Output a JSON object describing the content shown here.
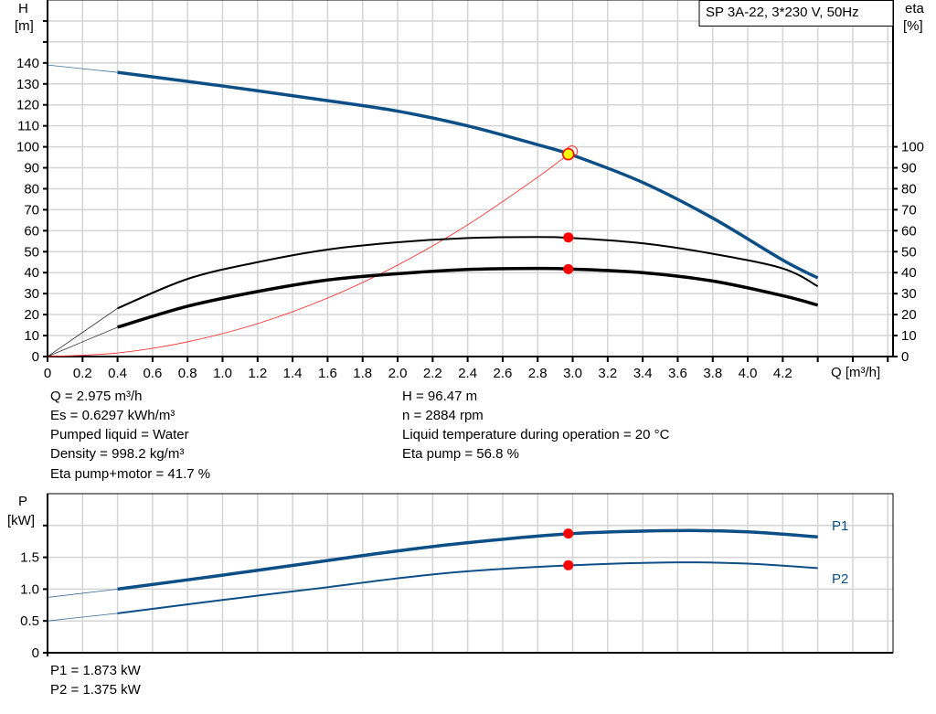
{
  "colors": {
    "head": "#0c4f86",
    "eta": "#000000",
    "system": "#ff2020",
    "duty_point": "#ff0000",
    "duty_fill": "#ffff00",
    "power": "#0c4f86",
    "grid": "#d4d4d4"
  },
  "chart_data": [
    {
      "type": "line",
      "title": "SP 3A-22, 3*230 V, 50Hz",
      "xlabel": "Q [m³/h]",
      "ylabel": "H\n[m]",
      "ylabel_top": "H",
      "ylabel_unit": "[m]",
      "y2label_top": "eta",
      "y2label_unit": "[%]",
      "xlim": [
        0,
        4.83
      ],
      "ylim": [
        0,
        170
      ],
      "y2lim": [
        0,
        170
      ],
      "x_ticks": [
        "0",
        "0.2",
        "0.4",
        "0.6",
        "0.8",
        "1.0",
        "1.2",
        "1.4",
        "1.6",
        "1.8",
        "2.0",
        "2.2",
        "2.4",
        "2.6",
        "2.8",
        "3.0",
        "3.2",
        "3.4",
        "3.6",
        "3.8",
        "4.0",
        "4.2"
      ],
      "y_ticks": [
        "0",
        "10",
        "20",
        "30",
        "40",
        "50",
        "60",
        "70",
        "80",
        "90",
        "100",
        "110",
        "120",
        "130",
        "140"
      ],
      "y2_ticks": [
        "0",
        "10",
        "20",
        "30",
        "40",
        "50",
        "60",
        "70",
        "80",
        "90",
        "100"
      ],
      "grid": true,
      "series": [
        {
          "name": "H",
          "axis": "left",
          "color_key": "head",
          "thin_until": 0.4,
          "x": [
            0,
            0.4,
            1.0,
            1.6,
            2.0,
            2.4,
            2.8,
            3.0,
            3.4,
            3.8,
            4.2,
            4.4
          ],
          "y": [
            139,
            135.5,
            129,
            122,
            117,
            110,
            101,
            96,
            83,
            66,
            46,
            37.5
          ]
        },
        {
          "name": "Eta pump",
          "axis": "right",
          "color_key": "eta",
          "thin_until": 0.4,
          "x": [
            0,
            0.4,
            0.8,
            1.2,
            1.6,
            2.0,
            2.4,
            2.8,
            3.0,
            3.4,
            3.8,
            4.2,
            4.4
          ],
          "y": [
            0,
            23,
            37,
            45,
            51,
            54.5,
            56.5,
            57,
            56.5,
            54,
            49,
            42,
            33.5
          ]
        },
        {
          "name": "Eta pump+motor",
          "axis": "right",
          "color_key": "eta",
          "thin_until": 0.4,
          "x": [
            0,
            0.4,
            0.8,
            1.2,
            1.6,
            2.0,
            2.4,
            2.8,
            3.0,
            3.4,
            3.8,
            4.2,
            4.4
          ],
          "y": [
            0,
            14,
            24,
            31,
            36.5,
            39.5,
            41.5,
            42,
            41.7,
            40,
            36,
            29,
            24.5
          ]
        },
        {
          "name": "System curve",
          "axis": "left",
          "color_key": "system",
          "x": [
            0,
            0.4,
            0.8,
            1.2,
            1.6,
            2.0,
            2.4,
            2.8,
            2.975
          ],
          "y": [
            0,
            1.7,
            7,
            15.7,
            27.9,
            43.6,
            62.8,
            85.5,
            96.47
          ]
        }
      ],
      "duty_points": [
        {
          "name": "H",
          "x": 2.975,
          "y": 96.47
        },
        {
          "name": "Eta pump",
          "x": 2.975,
          "y": 56.8
        },
        {
          "name": "Eta pump+motor",
          "x": 2.975,
          "y": 41.7
        }
      ],
      "annotations": {
        "left": [
          "Q = 2.975 m³/h",
          "Es = 0.6297 kWh/m³",
          "Pumped liquid = Water",
          "Density = 998.2 kg/m³",
          "Eta pump+motor = 41.7 %"
        ],
        "right": [
          "H = 96.47 m",
          "n = 2884 rpm",
          "Liquid temperature during operation = 20 °C",
          "Eta pump = 56.8 %"
        ]
      }
    },
    {
      "type": "line",
      "ylabel_top": "P",
      "ylabel_unit": "[kW]",
      "xlim": [
        0,
        4.83
      ],
      "ylim": [
        0,
        2.5
      ],
      "y_ticks": [
        "0",
        "0.5",
        "1.0",
        "1.5"
      ],
      "grid": true,
      "series": [
        {
          "name": "P1",
          "color_key": "power",
          "thin_until": 0.4,
          "thick": true,
          "x": [
            0,
            0.4,
            1.0,
            1.6,
            2.0,
            2.4,
            3.0,
            3.6,
            4.0,
            4.4
          ],
          "y": [
            0.87,
            1.0,
            1.22,
            1.45,
            1.6,
            1.73,
            1.873,
            1.92,
            1.9,
            1.82
          ]
        },
        {
          "name": "P2",
          "color_key": "power",
          "thin_until": 0.4,
          "x": [
            0,
            0.4,
            1.0,
            1.6,
            2.0,
            2.4,
            3.0,
            3.6,
            4.0,
            4.4
          ],
          "y": [
            0.5,
            0.62,
            0.83,
            1.03,
            1.17,
            1.28,
            1.375,
            1.42,
            1.4,
            1.33
          ]
        }
      ],
      "duty_points": [
        {
          "name": "P1",
          "x": 2.975,
          "y": 1.873
        },
        {
          "name": "P2",
          "x": 2.975,
          "y": 1.375
        }
      ],
      "annotations": [
        "P1 = 1.873 kW",
        "P2 = 1.375 kW"
      ]
    }
  ]
}
